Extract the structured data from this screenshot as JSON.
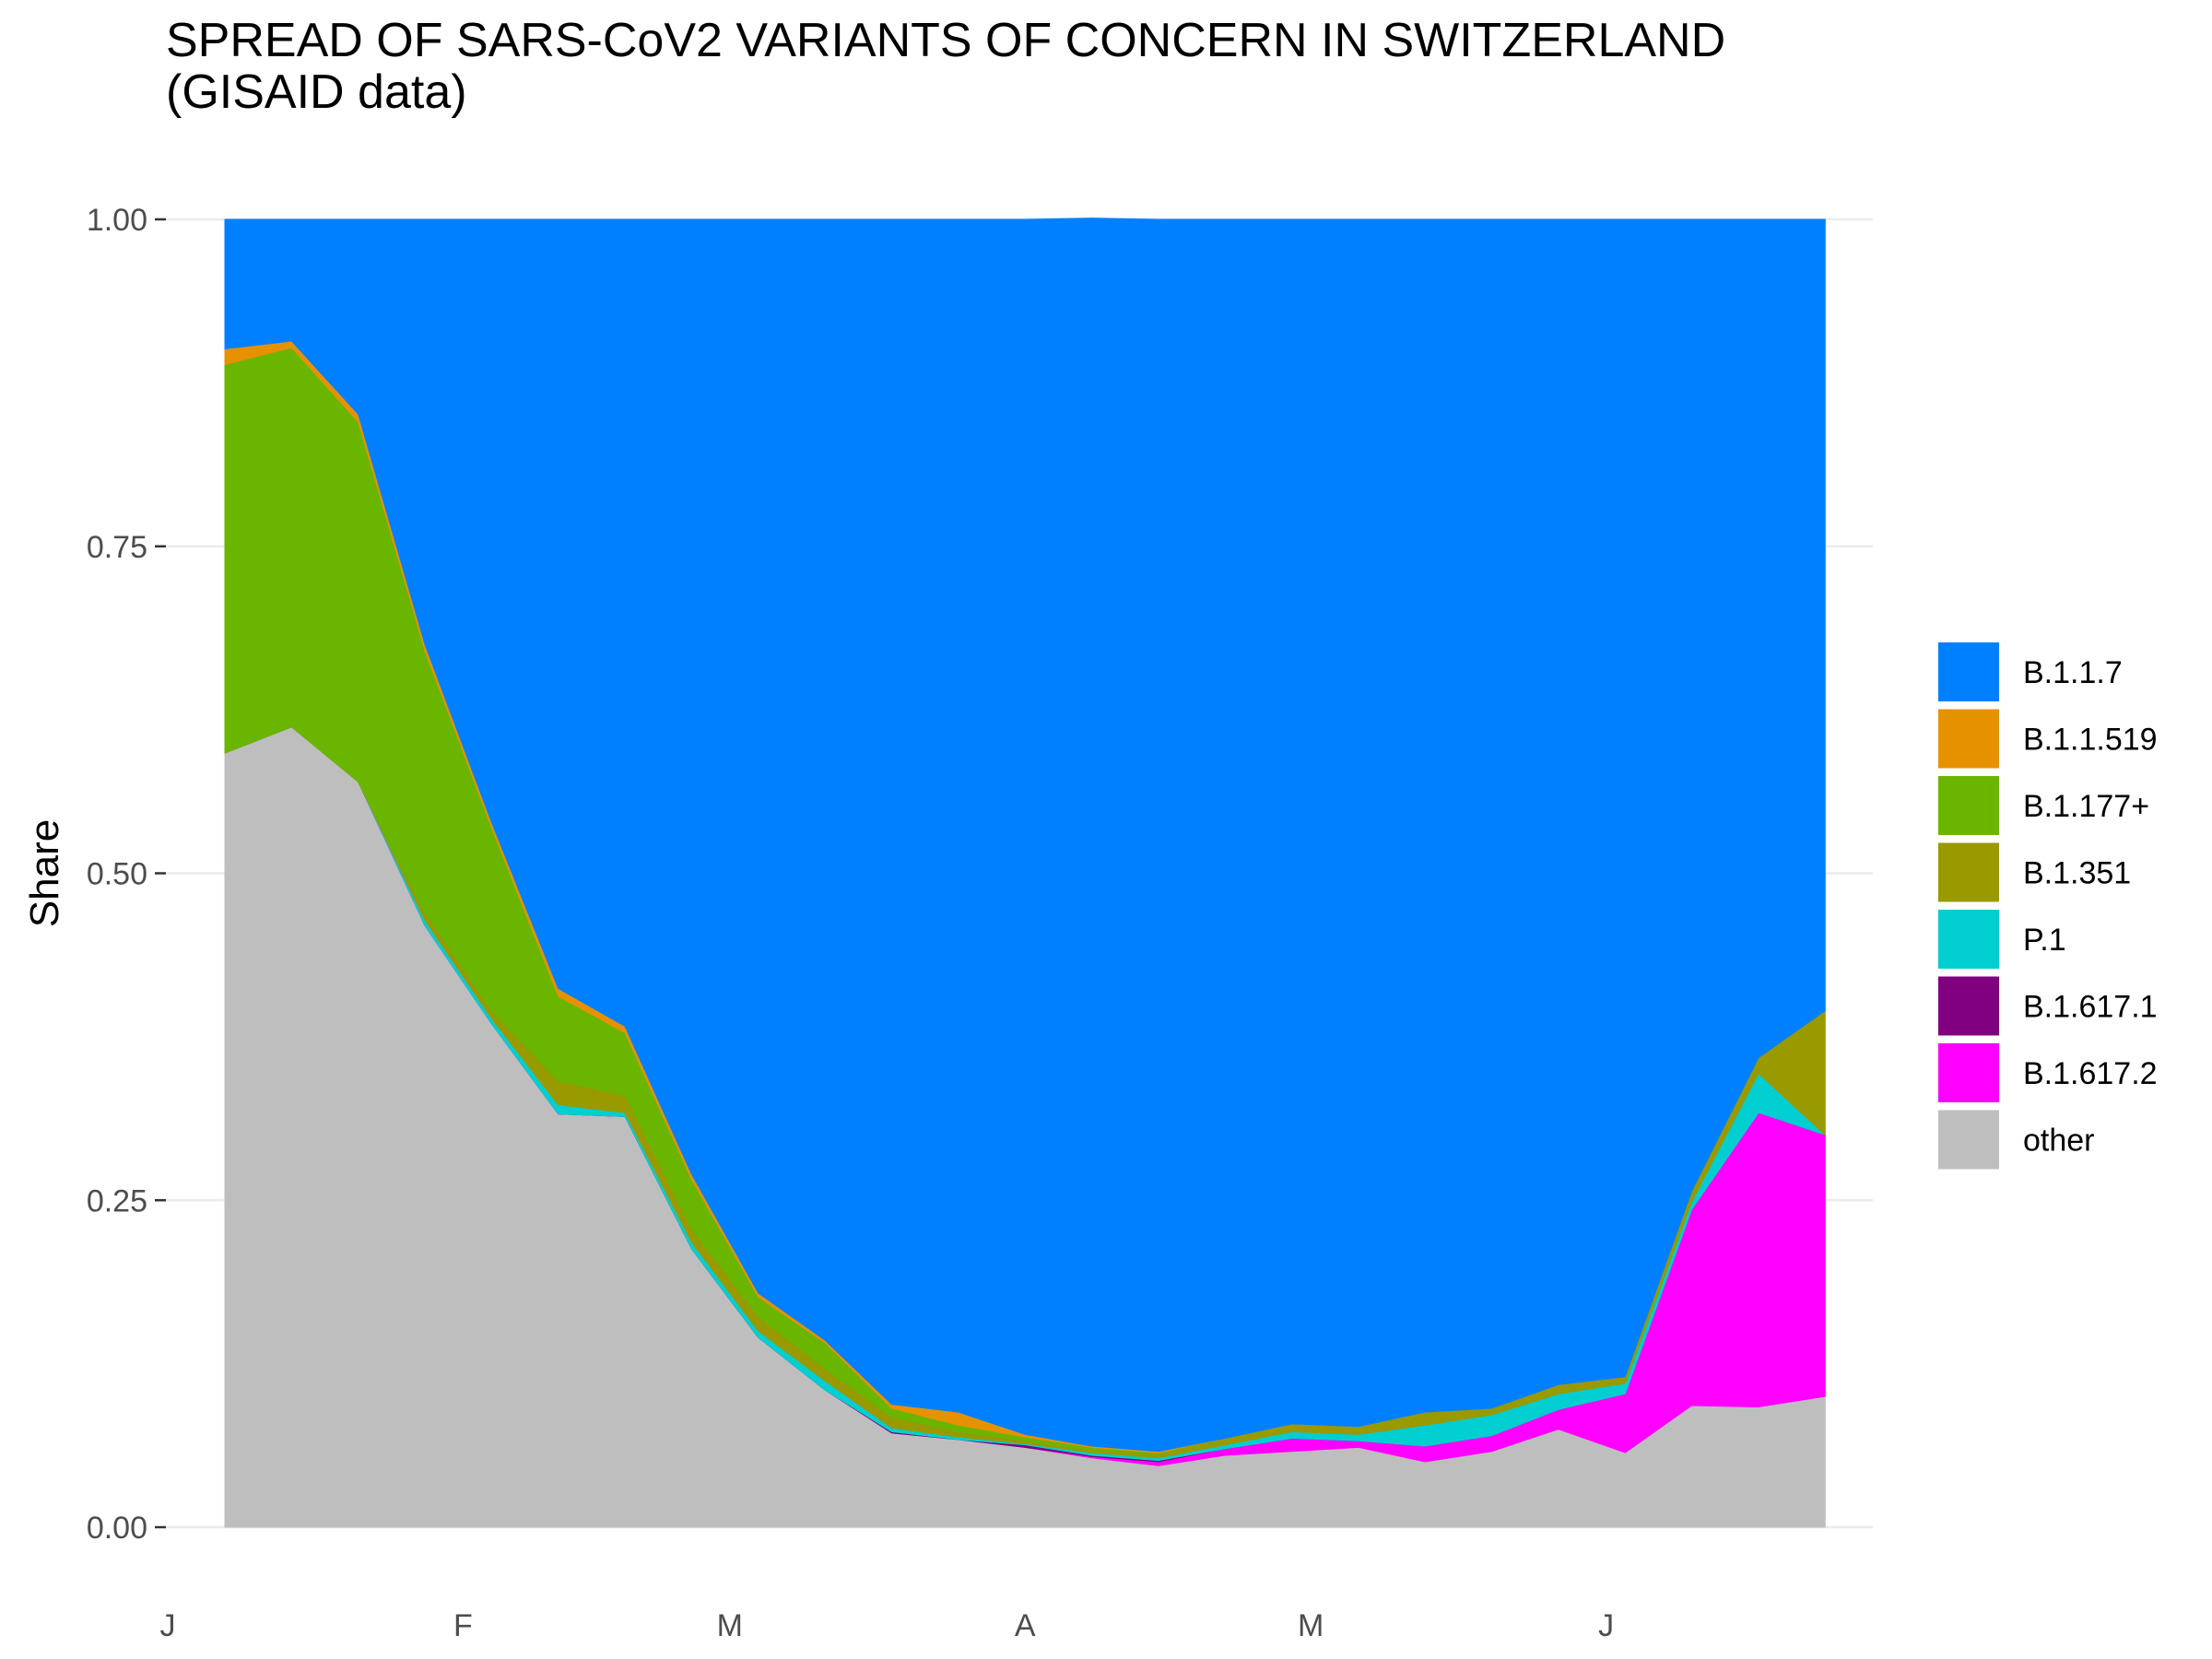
{
  "chart_data": {
    "type": "area",
    "stacked": true,
    "normalized": true,
    "title": "SPREAD OF SARS-CoV2 VARIANTS OF CONCERN IN SWITZERLAND\n(GISAID data)",
    "xlabel": "",
    "ylabel": "Share",
    "ylim": [
      0,
      1
    ],
    "grid": true,
    "legend_position": "right",
    "y_ticks": [
      "0.00",
      "0.25",
      "0.50",
      "0.75",
      "1.00"
    ],
    "x_tick_labels": [
      "J",
      "F",
      "M",
      "A",
      "M",
      "J"
    ],
    "x_tick_dates": [
      "2021-01-01",
      "2021-02-01",
      "2021-03-01",
      "2021-04-01",
      "2021-05-01",
      "2021-06-01"
    ],
    "x": [
      "2021-01-07",
      "2021-01-14",
      "2021-01-21",
      "2021-01-28",
      "2021-02-04",
      "2021-02-11",
      "2021-02-18",
      "2021-02-25",
      "2021-03-04",
      "2021-03-11",
      "2021-03-18",
      "2021-03-25",
      "2021-04-01",
      "2021-04-08",
      "2021-04-15",
      "2021-04-22",
      "2021-04-29",
      "2021-05-06",
      "2021-05-13",
      "2021-05-20",
      "2021-05-27",
      "2021-06-03",
      "2021-06-10",
      "2021-06-17",
      "2021-06-24"
    ],
    "series": [
      {
        "name": "other",
        "color": "#BEBEBE",
        "values": [
          0.592,
          0.612,
          0.57,
          0.46,
          0.385,
          0.316,
          0.314,
          0.213,
          0.145,
          0.105,
          0.072,
          0.067,
          0.061,
          0.053,
          0.047,
          0.055,
          0.058,
          0.061,
          0.05,
          0.058,
          0.075,
          0.057,
          0.093,
          0.092,
          0.1
        ]
      },
      {
        "name": "B.1.617.2",
        "color": "#FF00FF",
        "values": [
          0,
          0,
          0,
          0,
          0,
          0,
          0,
          0,
          0,
          0,
          0,
          0,
          0,
          0.001,
          0.003,
          0.005,
          0.01,
          0.005,
          0.012,
          0.012,
          0.015,
          0.045,
          0.15,
          0.225,
          0.2
        ]
      },
      {
        "name": "B.1.617.1",
        "color": "#800080",
        "values": [
          0,
          0,
          0,
          0,
          0,
          0,
          0,
          0,
          0,
          0,
          0.001,
          0,
          0.002,
          0.001,
          0.001,
          0,
          0,
          0,
          0,
          0,
          0,
          0,
          0,
          0,
          0
        ]
      },
      {
        "name": "P.1",
        "color": "#00CED1",
        "values": [
          0,
          0,
          0,
          0.004,
          0.004,
          0.007,
          0.003,
          0.005,
          0.005,
          0.007,
          0.003,
          0.002,
          0.001,
          0.002,
          0.002,
          0.003,
          0.005,
          0.005,
          0.016,
          0.016,
          0.012,
          0.008,
          0.006,
          0.03,
          0.0
        ]
      },
      {
        "name": "B.1.351",
        "color": "#999900",
        "values": [
          0,
          0,
          0,
          0.006,
          0.006,
          0.018,
          0.013,
          0.01,
          0.011,
          0.009,
          0.008,
          0.004,
          0.002,
          0.002,
          0.003,
          0.005,
          0.006,
          0.006,
          0.01,
          0.005,
          0.007,
          0.005,
          0.008,
          0.012,
          0.095
        ]
      },
      {
        "name": "B.1.177+",
        "color": "#6AB500",
        "values": [
          0.297,
          0.29,
          0.275,
          0.2,
          0.14,
          0.065,
          0.048,
          0.038,
          0.015,
          0.02,
          0.007,
          0.005,
          0.003,
          0.002,
          0.001,
          0,
          0,
          0,
          0,
          0,
          0,
          0,
          0,
          0,
          0
        ]
      },
      {
        "name": "B.1.1.519",
        "color": "#E69200",
        "values": [
          0.012,
          0.005,
          0.006,
          0.005,
          0.004,
          0.006,
          0.005,
          0.004,
          0.003,
          0.002,
          0.003,
          0.01,
          0.002,
          0.001,
          0.001,
          0,
          0,
          0,
          0,
          0,
          0,
          0,
          0,
          0,
          0
        ]
      },
      {
        "name": "B.1.1.7",
        "color": "#0080FF",
        "values": [
          0.099,
          0.093,
          0.149,
          0.325,
          0.461,
          0.588,
          0.617,
          0.73,
          0.821,
          0.857,
          0.906,
          0.912,
          0.929,
          0.939,
          0.942,
          0.932,
          0.921,
          0.923,
          0.912,
          0.909,
          0.891,
          0.885,
          0.743,
          0.641,
          0.605
        ]
      }
    ],
    "legend_order": [
      "B.1.1.7",
      "B.1.1.519",
      "B.1.177+",
      "B.1.351",
      "P.1",
      "B.1.617.1",
      "B.1.617.2",
      "other"
    ]
  }
}
